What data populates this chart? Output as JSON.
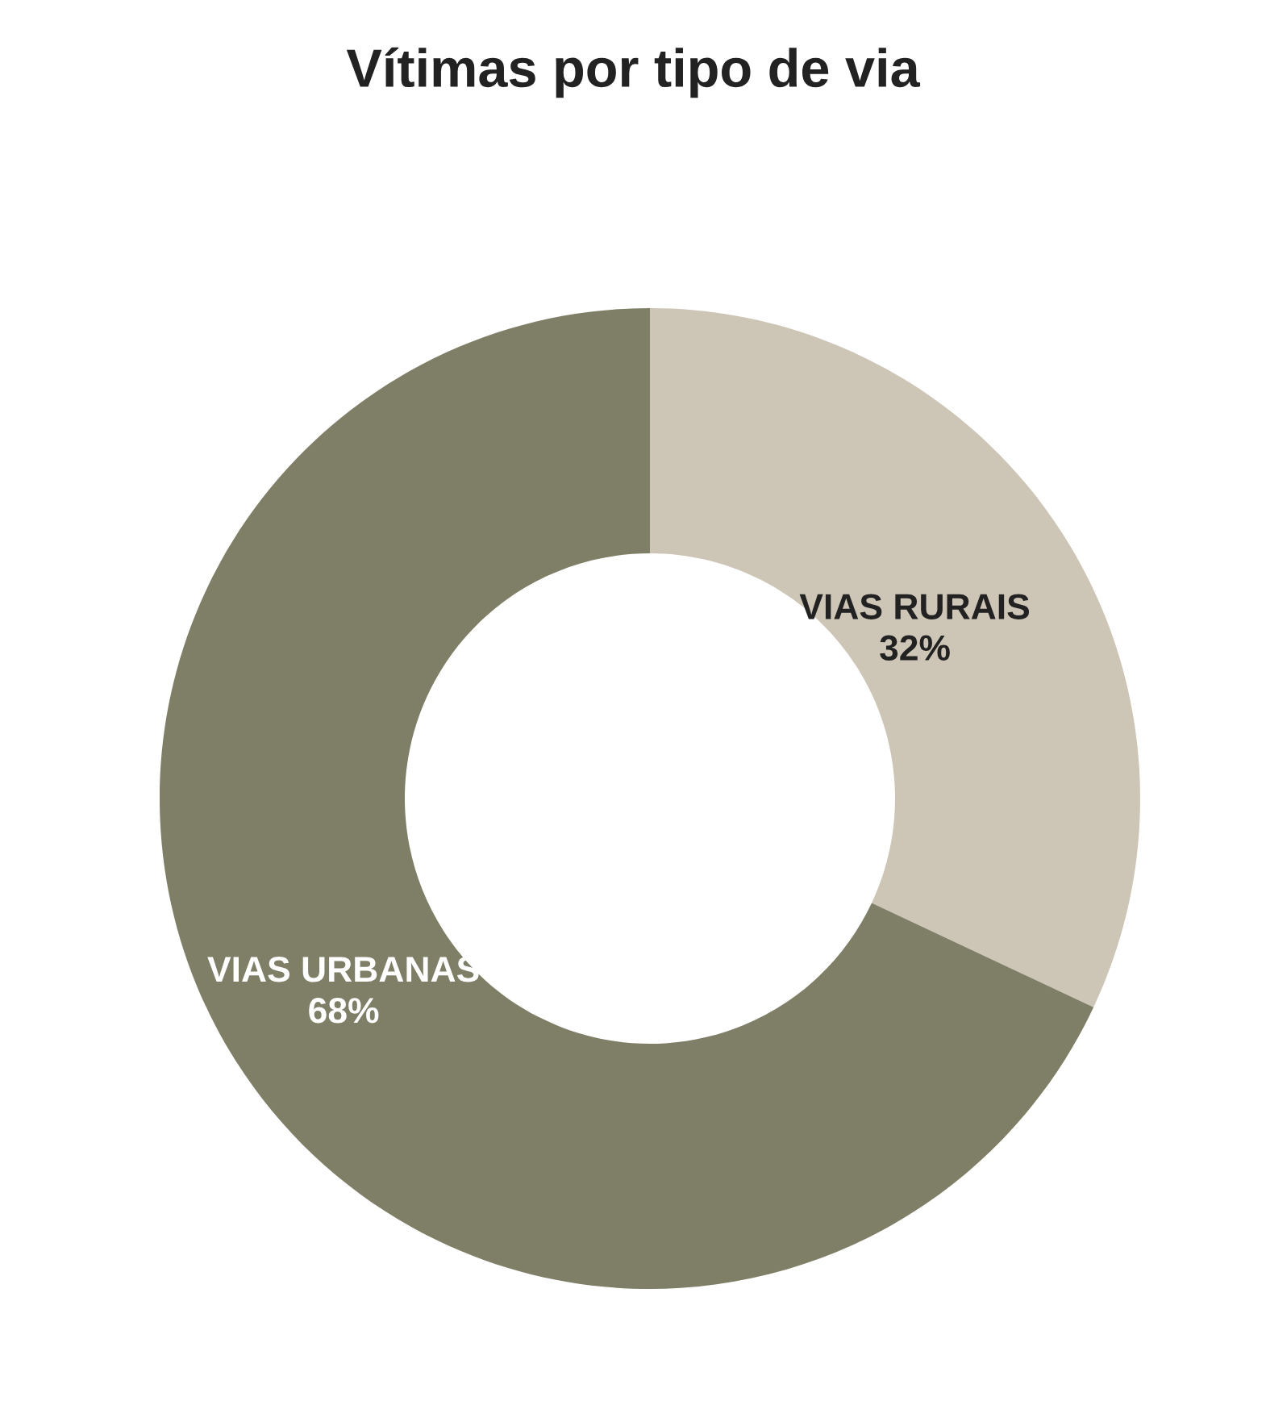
{
  "chart_data": {
    "type": "donut",
    "title": "Vítimas por tipo de via",
    "categories": [
      "VIAS RURAIS",
      "VIAS URBANAS"
    ],
    "values": [
      32,
      68
    ],
    "value_labels": [
      "32%",
      "68%"
    ],
    "colors": [
      "#cdc5b6",
      "#7f7f68"
    ]
  }
}
